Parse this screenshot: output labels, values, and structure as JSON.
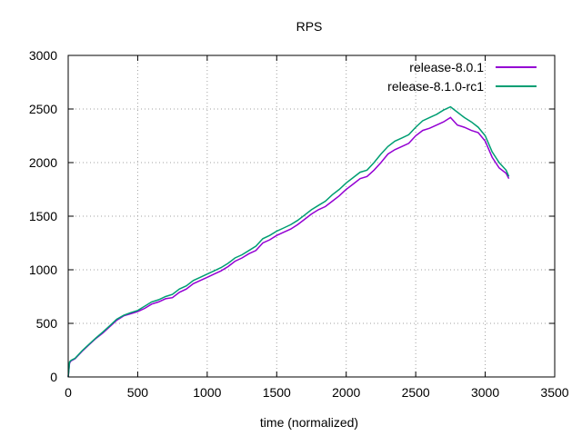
{
  "chart_data": {
    "type": "line",
    "title": "RPS",
    "xlabel": "time (normalized)",
    "ylabel": "",
    "xlim": [
      0,
      3500
    ],
    "ylim": [
      0,
      3000
    ],
    "xticks": [
      0,
      500,
      1000,
      1500,
      2000,
      2500,
      3000,
      3500
    ],
    "yticks": [
      0,
      500,
      1000,
      1500,
      2000,
      2500,
      3000
    ],
    "grid": true,
    "legend_position": "top-right",
    "series": [
      {
        "name": "release-8.0.1",
        "color": "#9400d3",
        "x": [
          0,
          10,
          20,
          50,
          100,
          150,
          200,
          250,
          300,
          350,
          400,
          450,
          500,
          550,
          600,
          650,
          700,
          750,
          800,
          850,
          900,
          950,
          1000,
          1050,
          1100,
          1150,
          1200,
          1250,
          1300,
          1350,
          1400,
          1450,
          1500,
          1550,
          1600,
          1650,
          1700,
          1750,
          1800,
          1850,
          1900,
          1950,
          2000,
          2050,
          2100,
          2150,
          2200,
          2250,
          2300,
          2350,
          2400,
          2450,
          2500,
          2550,
          2600,
          2650,
          2700,
          2750,
          2800,
          2850,
          2900,
          2950,
          3000,
          3050,
          3100,
          3150,
          3170
        ],
        "y": [
          0,
          130,
          150,
          170,
          240,
          300,
          360,
          410,
          470,
          530,
          570,
          590,
          610,
          640,
          680,
          700,
          730,
          740,
          790,
          820,
          870,
          900,
          930,
          960,
          990,
          1030,
          1080,
          1110,
          1150,
          1180,
          1250,
          1280,
          1320,
          1350,
          1380,
          1420,
          1470,
          1520,
          1560,
          1590,
          1640,
          1690,
          1750,
          1800,
          1850,
          1870,
          1930,
          2000,
          2080,
          2120,
          2150,
          2180,
          2250,
          2300,
          2320,
          2350,
          2380,
          2420,
          2350,
          2330,
          2300,
          2280,
          2200,
          2050,
          1950,
          1900,
          1850
        ]
      },
      {
        "name": "release-8.1.0-rc1",
        "color": "#009e73",
        "x": [
          0,
          10,
          20,
          50,
          100,
          150,
          200,
          250,
          300,
          350,
          400,
          450,
          500,
          550,
          600,
          650,
          700,
          750,
          800,
          850,
          900,
          950,
          1000,
          1050,
          1100,
          1150,
          1200,
          1250,
          1300,
          1350,
          1400,
          1450,
          1500,
          1550,
          1600,
          1650,
          1700,
          1750,
          1800,
          1850,
          1900,
          1950,
          2000,
          2050,
          2100,
          2150,
          2200,
          2250,
          2300,
          2350,
          2400,
          2450,
          2500,
          2550,
          2600,
          2650,
          2700,
          2750,
          2800,
          2850,
          2900,
          2950,
          3000,
          3050,
          3100,
          3150,
          3170
        ],
        "y": [
          0,
          140,
          155,
          175,
          245,
          305,
          365,
          420,
          480,
          540,
          575,
          600,
          620,
          660,
          700,
          720,
          750,
          770,
          820,
          850,
          900,
          930,
          960,
          990,
          1020,
          1060,
          1110,
          1140,
          1180,
          1220,
          1290,
          1320,
          1360,
          1390,
          1420,
          1460,
          1510,
          1560,
          1600,
          1640,
          1700,
          1750,
          1810,
          1860,
          1910,
          1930,
          2000,
          2080,
          2150,
          2200,
          2230,
          2260,
          2330,
          2390,
          2420,
          2450,
          2490,
          2520,
          2470,
          2420,
          2380,
          2330,
          2250,
          2100,
          2000,
          1930,
          1870
        ]
      }
    ]
  }
}
